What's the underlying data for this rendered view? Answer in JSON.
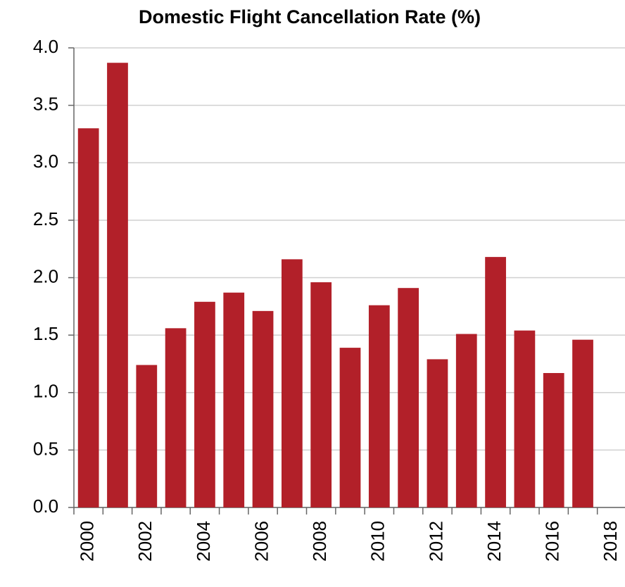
{
  "chart_data": {
    "type": "bar",
    "title": "Domestic Flight Cancellation Rate (%)",
    "categories": [
      "2000",
      null,
      "2002",
      null,
      "2004",
      null,
      "2006",
      null,
      "2008",
      null,
      "2010",
      null,
      "2012",
      null,
      "2014",
      null,
      "2016",
      null,
      "2018"
    ],
    "values": [
      3.3,
      3.87,
      1.24,
      1.56,
      1.79,
      1.87,
      1.71,
      2.16,
      1.96,
      1.39,
      1.76,
      1.91,
      1.29,
      1.51,
      2.18,
      1.54,
      1.17,
      1.46,
      null
    ],
    "color": "#b22029",
    "ylim": [
      0,
      4
    ],
    "yticks": [
      {
        "value": 0,
        "label": "0.0"
      },
      0.5,
      {
        "value": 1,
        "label": "1.0"
      },
      1.5,
      {
        "value": 2,
        "label": "2.0"
      },
      2.5,
      {
        "value": 3,
        "label": "3.0"
      },
      3.5,
      {
        "value": 4,
        "label": "4.0"
      }
    ],
    "grid": true
  }
}
